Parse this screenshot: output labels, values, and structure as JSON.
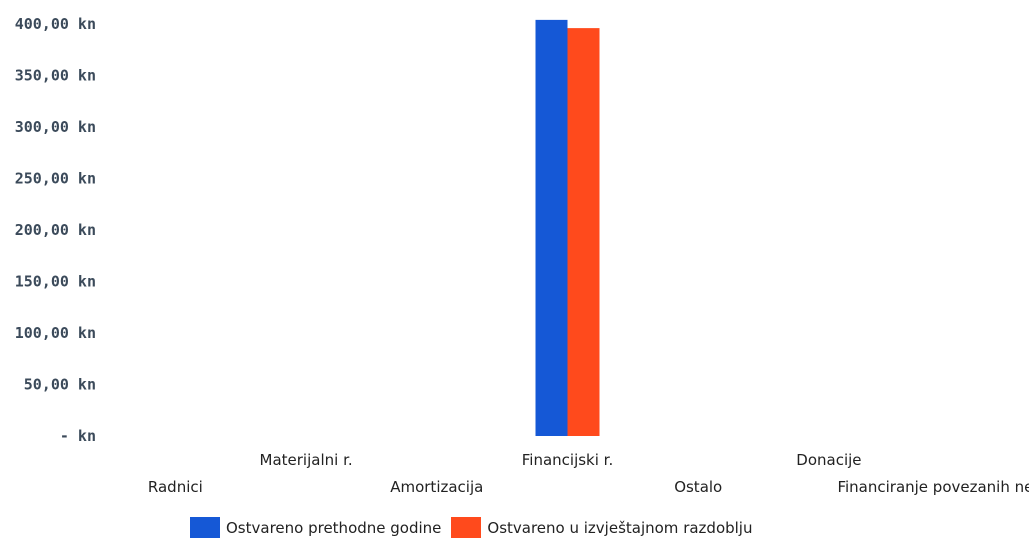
{
  "chart_data": {
    "type": "bar",
    "categories": [
      "Radnici",
      "Materijalni r.",
      "Amortizacija",
      "Financijski r.",
      "Ostalo",
      "Donacije",
      "Financiranje povezanih nepr.org."
    ],
    "series": [
      {
        "name": "Ostvareno prethodne godine",
        "color": "#1558d6",
        "values": [
          0,
          0,
          0,
          404,
          0,
          0,
          0
        ]
      },
      {
        "name": "Ostvareno u izvještajnom razdoblju",
        "color": "#ff4a1c",
        "values": [
          0,
          0,
          0,
          396,
          0,
          0,
          0
        ]
      }
    ],
    "y_ticks": [
      "-   kn",
      "50,00 kn",
      "100,00 kn",
      "150,00 kn",
      "200,00 kn",
      "250,00 kn",
      "300,00 kn",
      "350,00 kn",
      "400,00 kn"
    ],
    "ylim": [
      0,
      400
    ],
    "grid": false,
    "legend_position": "bottom"
  }
}
